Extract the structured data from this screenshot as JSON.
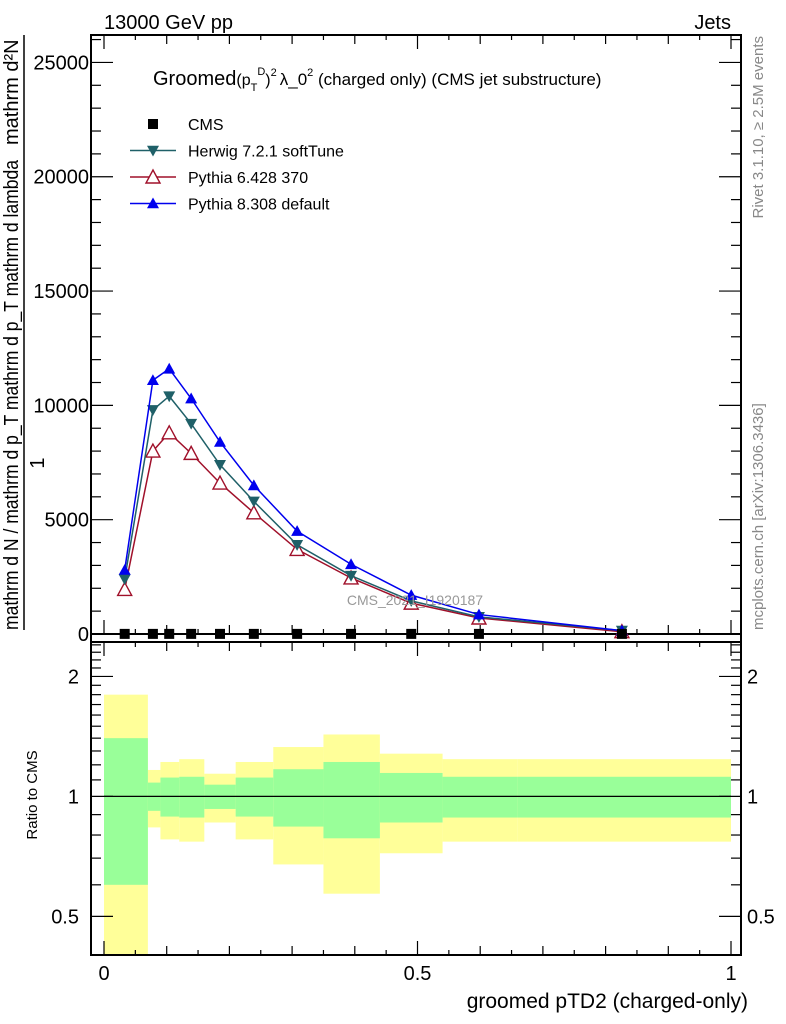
{
  "header": {
    "left": "13000 GeV pp",
    "right": "Jets"
  },
  "side_labels": {
    "rivet": "Rivet 3.1.10, ≥ 2.5M events",
    "mcplots": "mcplots.cern.ch [arXiv:1306.3436]"
  },
  "watermark": "CMS_2021_I1920187",
  "chart_data": [
    {
      "type": "line",
      "title": {
        "prefix": "Groomed",
        "p": "(p",
        "sub": "T",
        "sup": "D",
        "close": ")",
        "exp": "2",
        "lam": "λ_0",
        "lamexp": "2",
        "suffix": " (charged only) (CMS jet substructure)"
      },
      "ylabel": {
        "num1": "1",
        "den1": "mathrm d N / mathrm d p_T mathrm d p_T mathrm d lambda",
        "num2": "mathrm d²N"
      },
      "ylim": [
        -350,
        26200
      ],
      "yticks": [
        0,
        5000,
        10000,
        15000,
        20000,
        25000
      ],
      "ytick_labels": [
        "0",
        "5000",
        "10000",
        "15000",
        "20000",
        "25000"
      ],
      "x": [
        0.033,
        0.078,
        0.104,
        0.139,
        0.185,
        0.239,
        0.308,
        0.394,
        0.49,
        0.598,
        0.826
      ],
      "series": [
        {
          "name": "CMS",
          "marker": "square",
          "color": "#000000",
          "values": [
            5,
            5,
            5,
            5,
            5,
            5,
            5,
            5,
            5,
            5,
            5
          ]
        },
        {
          "name": "Herwig 7.2.1 softTune",
          "marker": "triangle-down",
          "color": "#1f6068",
          "values": [
            2400,
            9800,
            10400,
            9200,
            7400,
            5800,
            3900,
            2550,
            1450,
            750,
            150
          ]
        },
        {
          "name": "Pythia 6.428 370",
          "marker": "triangle-open",
          "color": "#a0102a",
          "values": [
            1950,
            8000,
            8800,
            7900,
            6600,
            5300,
            3700,
            2450,
            1350,
            700,
            100
          ]
        },
        {
          "name": "Pythia 8.308 default",
          "marker": "triangle-up",
          "color": "#0000ee",
          "values": [
            2800,
            11100,
            11600,
            10300,
            8400,
            6500,
            4500,
            3050,
            1700,
            850,
            150
          ]
        }
      ],
      "legend_position": "top-left"
    },
    {
      "type": "area",
      "ylabel": "Ratio to CMS",
      "xlabel": "groomed pTD2 (charged-only)",
      "yscale": "log",
      "ylim": [
        0.4,
        2.44
      ],
      "xlim": [
        0,
        1
      ],
      "yticks": [
        0.5,
        1,
        2
      ],
      "ytick_labels": [
        "0.5",
        "1",
        "2"
      ],
      "xticks": [
        0,
        0.5,
        1
      ],
      "xtick_labels": [
        "0",
        "0.5",
        "1"
      ],
      "bin_edges": [
        0,
        0.07,
        0.09,
        0.12,
        0.16,
        0.21,
        0.27,
        0.35,
        0.44,
        0.54,
        0.66,
        1.0
      ],
      "band_outer": {
        "color": "#ffff99",
        "upper": [
          1.8,
          1.165,
          1.22,
          1.24,
          1.14,
          1.22,
          1.33,
          1.43,
          1.28,
          1.24,
          1.24
        ],
        "lower": [
          0.35,
          0.836,
          0.78,
          0.77,
          0.86,
          0.78,
          0.675,
          0.57,
          0.72,
          0.77,
          0.77
        ]
      },
      "band_inner": {
        "color": "#99ff99",
        "upper": [
          1.4,
          1.083,
          1.115,
          1.12,
          1.07,
          1.115,
          1.17,
          1.22,
          1.145,
          1.12,
          1.12
        ],
        "lower": [
          0.6,
          0.92,
          0.89,
          0.885,
          0.93,
          0.89,
          0.84,
          0.785,
          0.86,
          0.885,
          0.885
        ]
      },
      "reference_line": 1
    }
  ]
}
